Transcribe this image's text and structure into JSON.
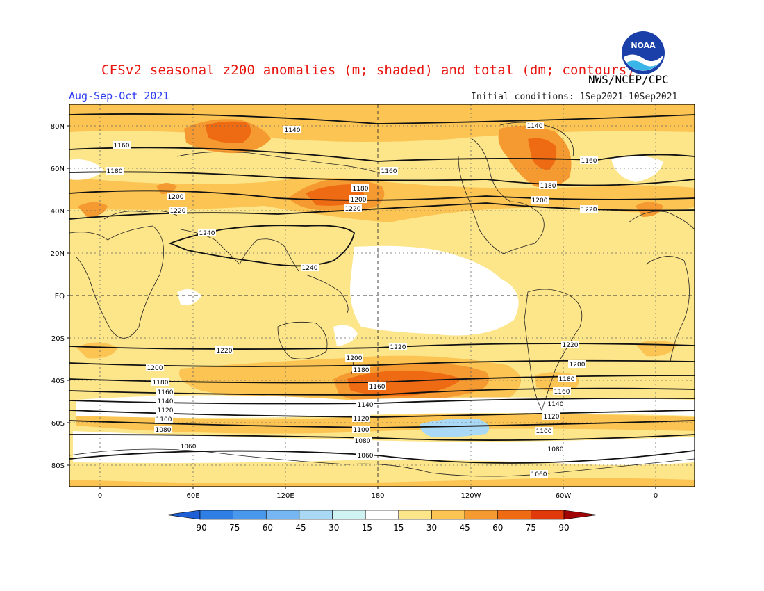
{
  "title": "CFSv2 seasonal z200 anomalies (m; shaded) and total (dm; contours)",
  "season": "Aug-Sep-Oct 2021",
  "agency": "NWS/NCEP/CPC",
  "initial_conditions": "Initial conditions: 1Sep2021-10Sep2021",
  "logo": {
    "icon": "noaa-logo",
    "text": "NOAA"
  },
  "lat_labels": [
    "80N",
    "60N",
    "40N",
    "20N",
    "EQ",
    "20S",
    "40S",
    "60S",
    "80S"
  ],
  "lon_labels": [
    "0",
    "60E",
    "120E",
    "180",
    "120W",
    "60W",
    "0"
  ],
  "colorbar": {
    "labels": [
      "-90",
      "-75",
      "-60",
      "-45",
      "-30",
      "-15",
      "15",
      "30",
      "45",
      "60",
      "75",
      "90"
    ],
    "colors": [
      "#1f5fd6",
      "#2f7ee4",
      "#4a98ec",
      "#76b6f2",
      "#a9d9f5",
      "#cff2f3",
      "#ffffff",
      "#fde58a",
      "#fbc453",
      "#f59a31",
      "#ee6a13",
      "#e03a0c",
      "#c31606",
      "#a10404"
    ]
  },
  "contour_labels": [
    "1240",
    "1220",
    "1200",
    "1180",
    "1160",
    "1140",
    "1120",
    "1100",
    "1080",
    "1060"
  ]
}
